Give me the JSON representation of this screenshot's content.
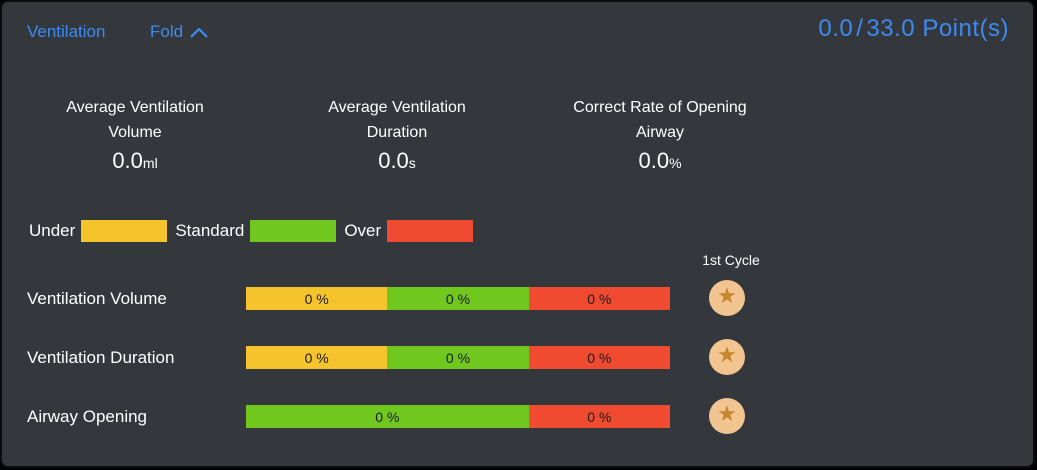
{
  "colors": {
    "accent": "#3D8BF2",
    "panel_bg": "#34373C",
    "under": "#F5C32B",
    "standard": "#70C81F",
    "over": "#F04A31",
    "star_badge_bg": "#F2C48F",
    "star_glyph": "#C5862E"
  },
  "header": {
    "title": "Ventilation",
    "fold_label": "Fold",
    "score": {
      "earned": "0.0",
      "separator": "/",
      "total": "33.0",
      "suffix": "Point(s)"
    }
  },
  "stats": [
    {
      "label_line1": "Average Ventilation",
      "label_line2": "Volume",
      "value": "0.0",
      "unit": "ml"
    },
    {
      "label_line1": "Average Ventilation",
      "label_line2": "Duration",
      "value": "0.0",
      "unit": "s"
    },
    {
      "label_line1": "Correct Rate of Opening",
      "label_line2": "Airway",
      "value": "0.0",
      "unit": "%"
    }
  ],
  "legend": [
    {
      "label": "Under",
      "status": "under"
    },
    {
      "label": "Standard",
      "status": "standard"
    },
    {
      "label": "Over",
      "status": "over"
    }
  ],
  "cycle_column_header": "1st Cycle",
  "rows": [
    {
      "label": "Ventilation Volume",
      "segments": [
        {
          "status": "under",
          "label": "0 %",
          "width_pct": 33.33
        },
        {
          "status": "standard",
          "label": "0 %",
          "width_pct": 33.34
        },
        {
          "status": "over",
          "label": "0 %",
          "width_pct": 33.33
        }
      ]
    },
    {
      "label": "Ventilation Duration",
      "segments": [
        {
          "status": "under",
          "label": "0 %",
          "width_pct": 33.33
        },
        {
          "status": "standard",
          "label": "0 %",
          "width_pct": 33.34
        },
        {
          "status": "over",
          "label": "0 %",
          "width_pct": 33.33
        }
      ]
    },
    {
      "label": "Airway Opening",
      "segments": [
        {
          "status": "standard",
          "label": "0 %",
          "width_pct": 66.67
        },
        {
          "status": "over",
          "label": "0 %",
          "width_pct": 33.33
        }
      ]
    }
  ],
  "icons": {
    "star": "★"
  }
}
